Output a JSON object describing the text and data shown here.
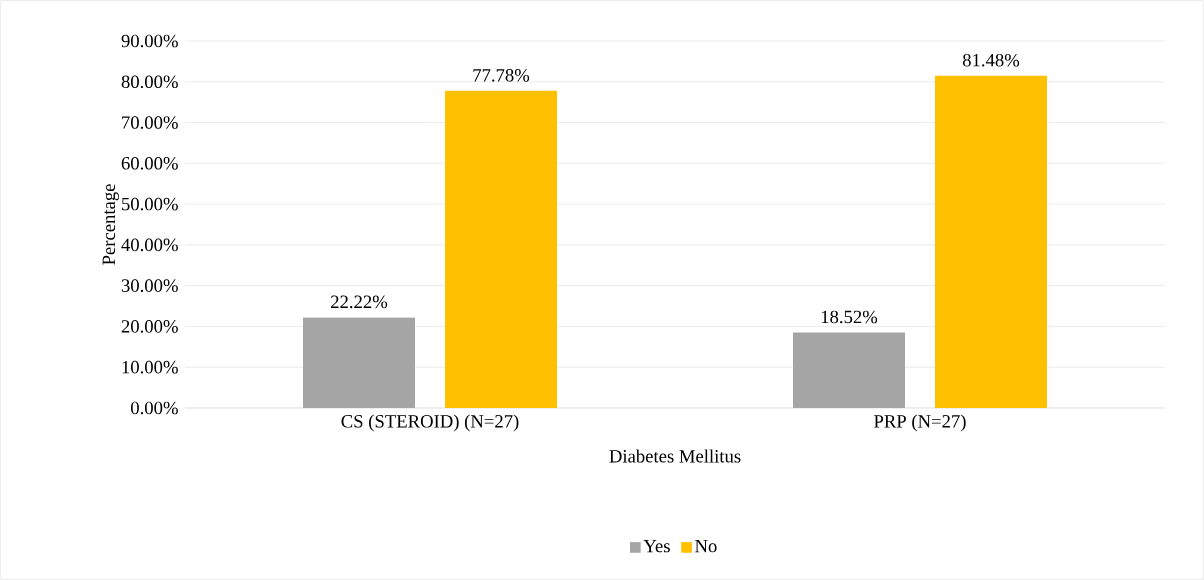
{
  "chart_data": {
    "type": "bar",
    "xlabel": "Diabetes Mellitus",
    "ylabel": "Percentage",
    "categories": [
      "CS (STEROID) (N=27)",
      "PRP (N=27)"
    ],
    "series": [
      {
        "name": "Yes",
        "color": "#a5a5a5",
        "values": [
          22.22,
          18.52
        ],
        "value_labels": [
          "22.22%",
          "18.52%"
        ]
      },
      {
        "name": "No",
        "color": "#ffc000",
        "values": [
          77.78,
          81.48
        ],
        "value_labels": [
          "77.78%",
          "81.48%"
        ]
      }
    ],
    "ylim": [
      0,
      90
    ],
    "yticks": [
      {
        "value": 0,
        "label": "0.00%"
      },
      {
        "value": 10,
        "label": "10.00%"
      },
      {
        "value": 20,
        "label": "20.00%"
      },
      {
        "value": 30,
        "label": "30.00%"
      },
      {
        "value": 40,
        "label": "40.00%"
      },
      {
        "value": 50,
        "label": "50.00%"
      },
      {
        "value": 60,
        "label": "60.00%"
      },
      {
        "value": 70,
        "label": "70.00%"
      },
      {
        "value": 80,
        "label": "80.00%"
      },
      {
        "value": 90,
        "label": "90.00%"
      }
    ],
    "grid": "y",
    "legend": "bottom"
  }
}
